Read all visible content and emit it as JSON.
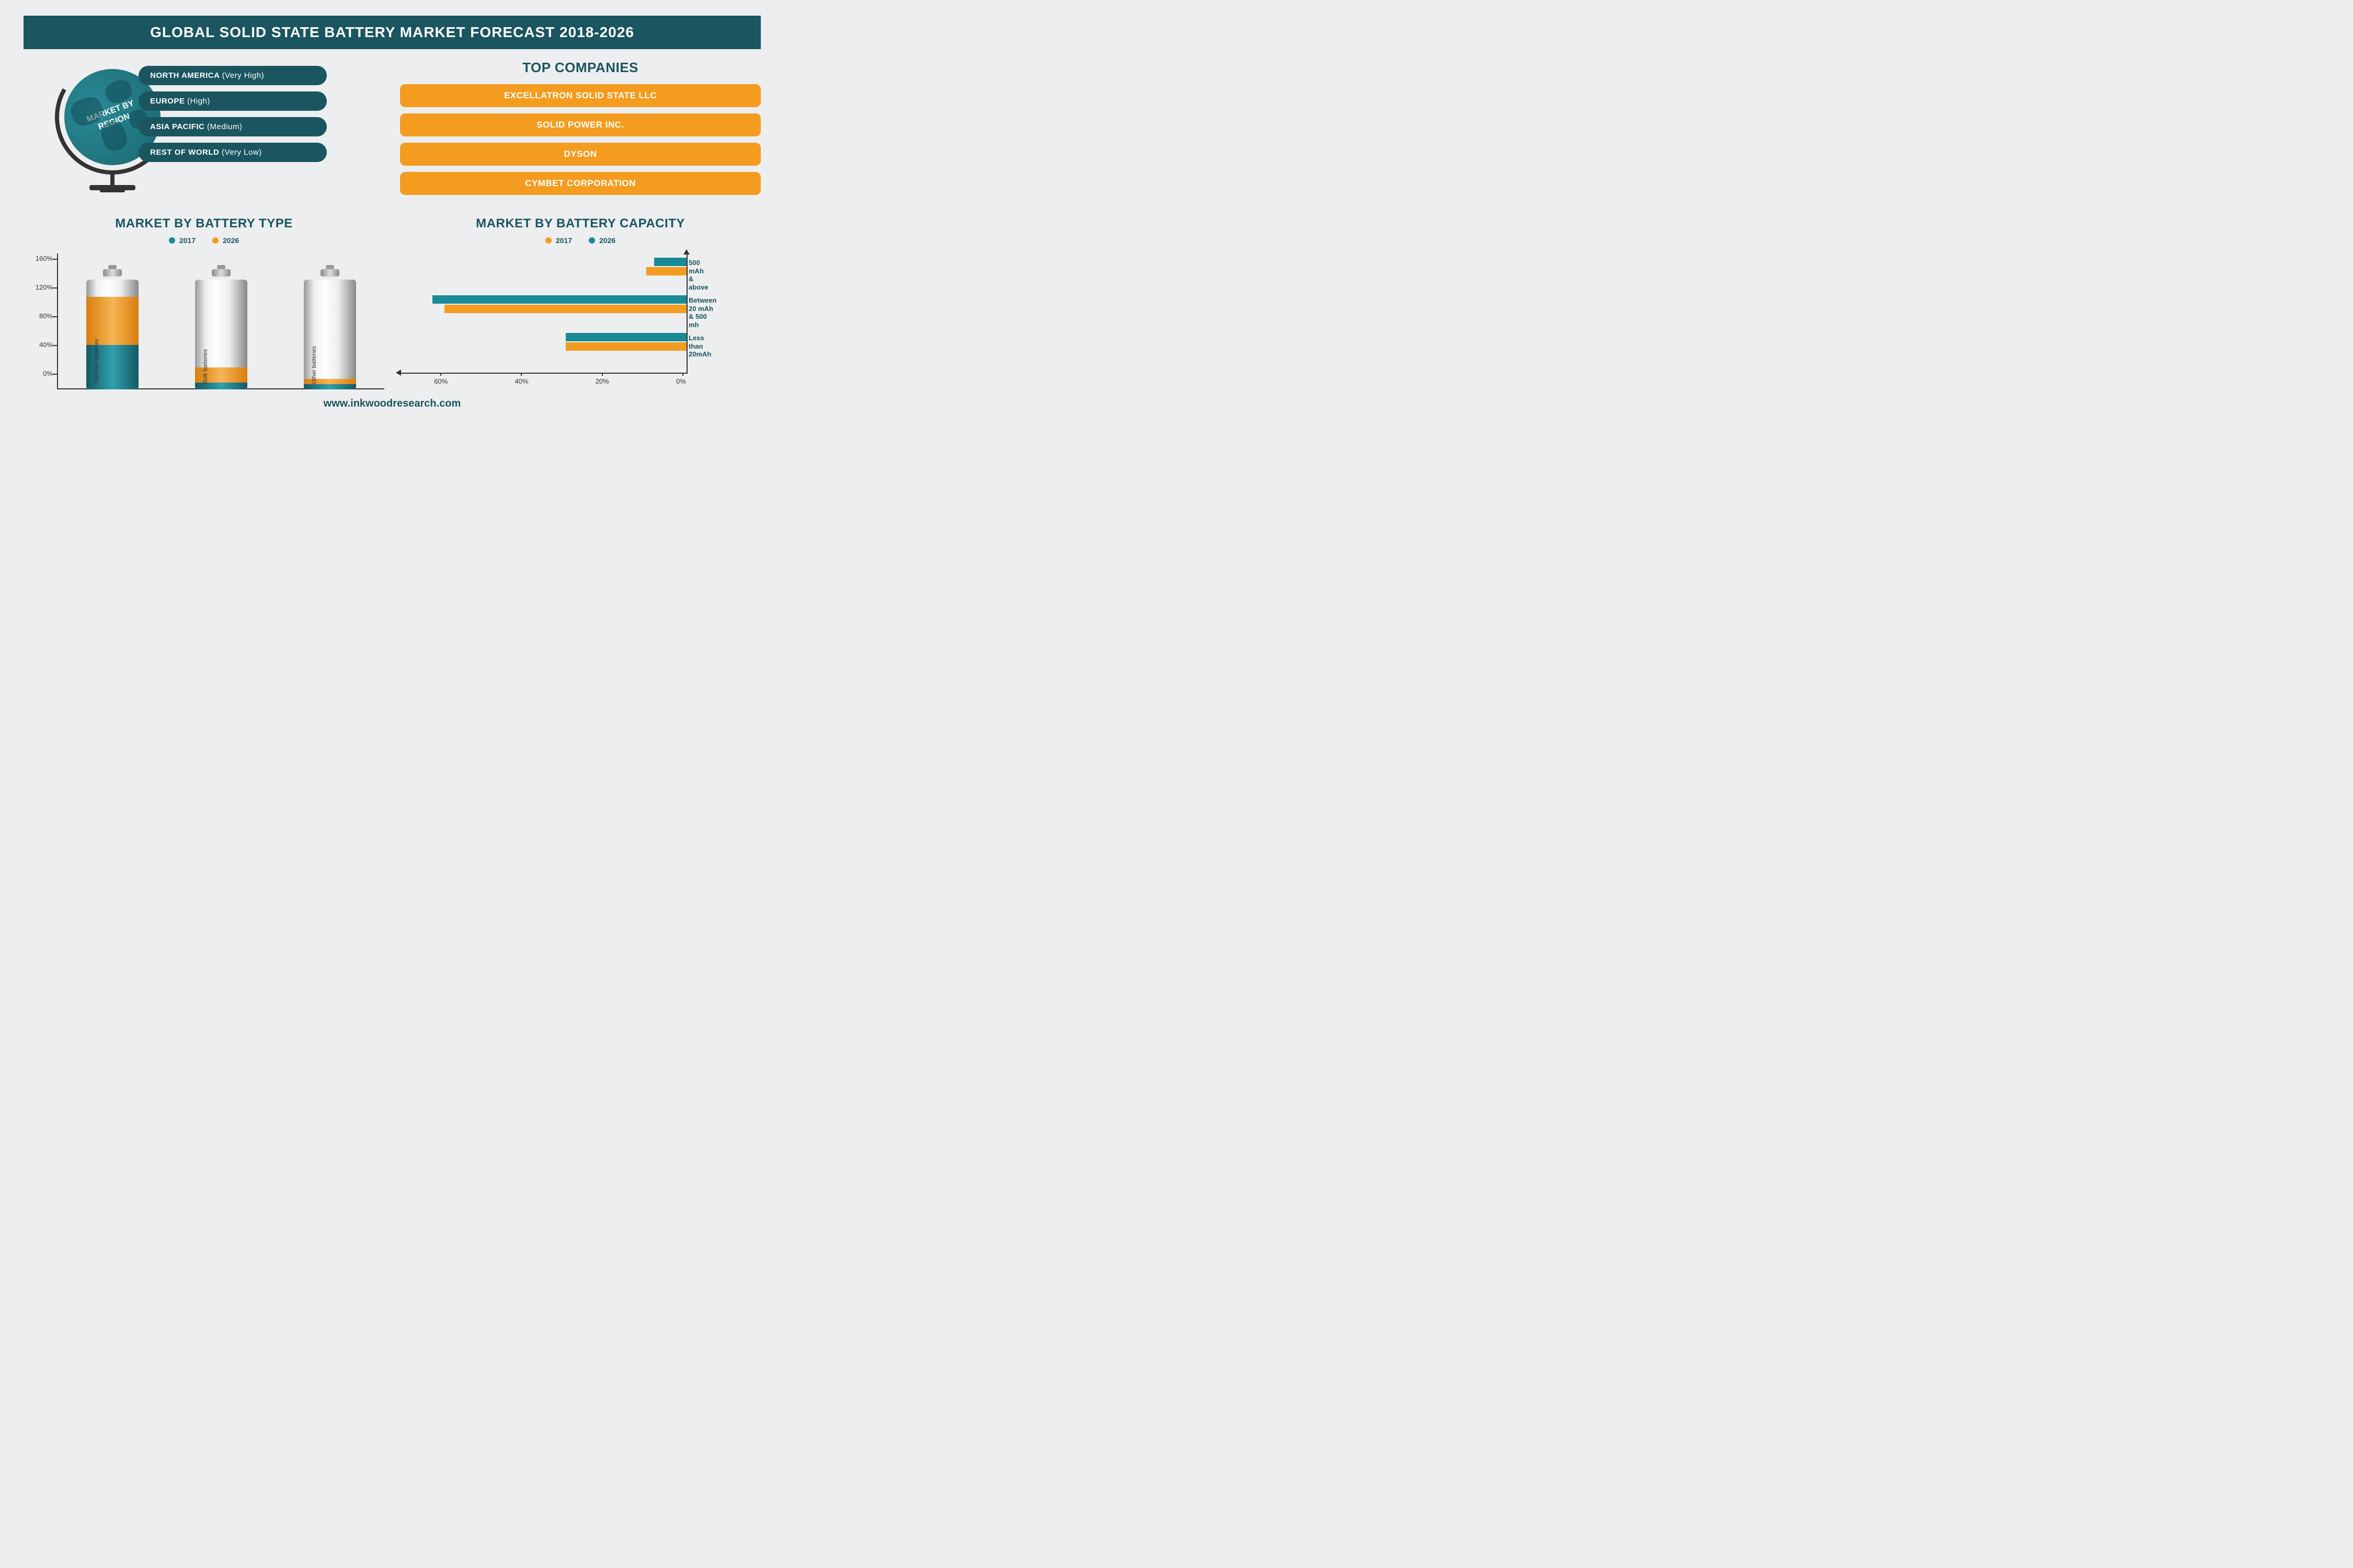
{
  "title": "GLOBAL SOLID STATE BATTERY MARKET FORECAST 2018-2026",
  "colors": {
    "teal": "#1a5560",
    "teal_light": "#2a8a97",
    "orange": "#f39c1f",
    "bg": "#edeeef",
    "text_dark": "#333333"
  },
  "globe": {
    "label": "MARKET BY\nREGION"
  },
  "regions": [
    {
      "name": "NORTH AMERICA",
      "level": "(Very High)"
    },
    {
      "name": "EUROPE",
      "level": "(High)"
    },
    {
      "name": "ASIA PACIFIC",
      "level": "(Medium)"
    },
    {
      "name": "REST OF WORLD",
      "level": "(Very Low)"
    }
  ],
  "top_companies": {
    "title": "TOP COMPANIES",
    "items": [
      "EXCELLATRON SOLID STATE LLC",
      "SOLID POWER INC.",
      "DYSON",
      "CYMBET CORPORATION"
    ]
  },
  "battery_type_chart": {
    "title": "MARKET BY BATTERY TYPE",
    "legend": [
      {
        "year": "2017",
        "color": "#1a8a97"
      },
      {
        "year": "2026",
        "color": "#f39c1f"
      }
    ],
    "y_ticks": [
      "160%",
      "120%",
      "80%",
      "40%",
      "0%"
    ],
    "y_max": 160,
    "batteries": [
      {
        "label": "Thin-film batteries",
        "val_2017": 65,
        "val_2026": 135
      },
      {
        "label": "Bulk batteries",
        "val_2017": 10,
        "val_2026": 32
      },
      {
        "label": "Other batteries",
        "val_2017": 8,
        "val_2026": 15
      }
    ]
  },
  "capacity_chart": {
    "title": "MARKET BY BATTERY CAPACITY",
    "legend": [
      {
        "year": "2017",
        "color": "#f39c1f"
      },
      {
        "year": "2026",
        "color": "#1a8a97"
      }
    ],
    "x_ticks": [
      "60%",
      "40%",
      "20%",
      "0%"
    ],
    "x_max": 70,
    "categories": [
      {
        "label": "500 mAh\n& above",
        "val_2017": 10,
        "val_2026": 8
      },
      {
        "label": "Between 20 mAh\n& 500 mh",
        "val_2017": 60,
        "val_2026": 63
      },
      {
        "label": "Less than\n20mAh",
        "val_2017": 30,
        "val_2026": 30
      }
    ],
    "colors": {
      "2017": "#f39c1f",
      "2026": "#1a8a97"
    }
  },
  "footer": "www.inkwoodresearch.com"
}
